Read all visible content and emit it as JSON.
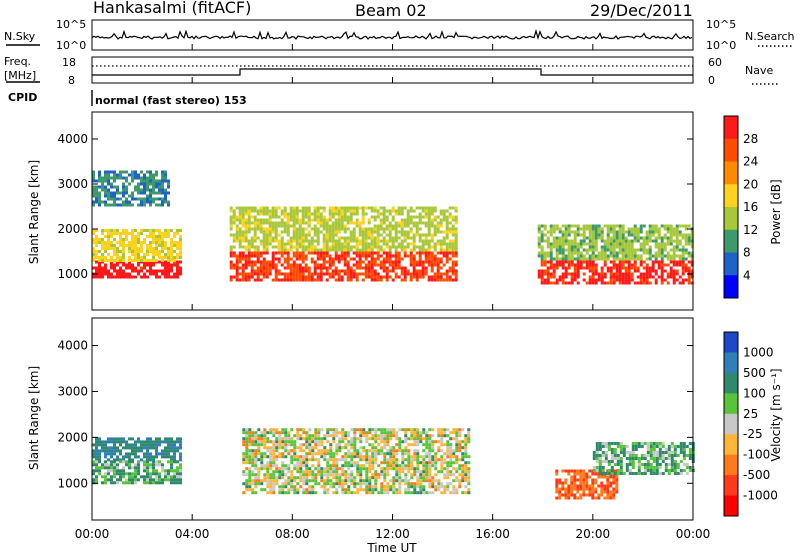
{
  "header": {
    "station": "Hankasalmi (fitACF)",
    "beam": "Beam 02",
    "date": "29/Dec/2011"
  },
  "panels": {
    "nsky": {
      "left_label": "N.Sky",
      "left_ticks": [
        "10^5",
        "10^0"
      ],
      "right_ticks": [
        "10^5",
        "10^0"
      ],
      "right_label": "N.Search"
    },
    "freq": {
      "left_label_1": "Freq.",
      "left_label_2": "[MHz]",
      "left_ticks": [
        "18",
        "8"
      ],
      "right_ticks": [
        "60",
        "0"
      ],
      "right_label": "Nave"
    },
    "cpid": {
      "label": "CPID",
      "text": "normal (fast stereo) 153"
    }
  },
  "power_panel": {
    "ylabel": "Slant Range [km]",
    "yticks": [
      "4000",
      "3000",
      "2000",
      "1000"
    ],
    "colorbar_label": "Power [dB]",
    "colorbar_ticks": [
      "28",
      "24",
      "20",
      "16",
      "12",
      "8",
      "4"
    ],
    "colorbar_colors": [
      "#ff1a1a",
      "#ff4d00",
      "#ff8c00",
      "#ffd21f",
      "#a8c83a",
      "#3e9a6b",
      "#1f63c8",
      "#0000ff"
    ]
  },
  "velocity_panel": {
    "ylabel": "Slant Range [km]",
    "yticks": [
      "4000",
      "3000",
      "2000",
      "1000"
    ],
    "colorbar_label": "Velocity [m s⁻¹]",
    "colorbar_ticks": [
      "1000",
      "500",
      "100",
      "25",
      "-25",
      "-100",
      "-500",
      "-1000"
    ],
    "colorbar_colors": [
      "#1b49c8",
      "#2f7fb9",
      "#2f8a6d",
      "#58c43a",
      "#c8c8c8",
      "#ffb43a",
      "#ff7a1a",
      "#ff3a1a",
      "#ff0000"
    ]
  },
  "xaxis": {
    "ticks": [
      "00:00",
      "04:00",
      "08:00",
      "12:00",
      "16:00",
      "20:00",
      "00:00"
    ],
    "label": "Time UT"
  },
  "chart_data": [
    {
      "type": "heatmap",
      "name": "Power",
      "title": "Hankasalmi (fitACF) Beam 02 29/Dec/2011",
      "xlabel": "Time UT",
      "ylabel": "Slant Range [km]",
      "zlabel": "Power [dB]",
      "xlim": [
        0,
        24
      ],
      "ylim": [
        200,
        4600
      ],
      "zlim": [
        0,
        30
      ],
      "regions": [
        {
          "t": [
            0.0,
            3.5
          ],
          "range": [
            900,
            1300
          ],
          "value": 28
        },
        {
          "t": [
            0.0,
            3.5
          ],
          "range": [
            1300,
            2000
          ],
          "value": 16
        },
        {
          "t": [
            5.5,
            14.5
          ],
          "range": [
            850,
            1500
          ],
          "value": 26
        },
        {
          "t": [
            5.5,
            14.5
          ],
          "range": [
            1500,
            2500
          ],
          "value": 14
        },
        {
          "t": [
            17.8,
            24.0
          ],
          "range": [
            800,
            1300
          ],
          "value": 27
        },
        {
          "t": [
            17.8,
            24.0
          ],
          "range": [
            1300,
            2100
          ],
          "value": 12
        },
        {
          "t": [
            0.0,
            3.0
          ],
          "range": [
            2500,
            3300
          ],
          "value": 8
        }
      ]
    },
    {
      "type": "heatmap",
      "name": "Velocity",
      "xlabel": "Time UT",
      "ylabel": "Slant Range [km]",
      "zlabel": "Velocity [m s-1]",
      "xlim": [
        0,
        24
      ],
      "ylim": [
        200,
        4600
      ],
      "zlim": [
        -1000,
        1000
      ],
      "regions": [
        {
          "t": [
            0.0,
            3.5
          ],
          "range": [
            1500,
            2000
          ],
          "value": 500
        },
        {
          "t": [
            0.0,
            3.5
          ],
          "range": [
            1000,
            1500
          ],
          "value": 100
        },
        {
          "t": [
            6.0,
            15.0
          ],
          "range": [
            800,
            2200
          ],
          "value": 0
        },
        {
          "t": [
            18.5,
            21.0
          ],
          "range": [
            700,
            1300
          ],
          "value": -500
        },
        {
          "t": [
            20.0,
            24.0
          ],
          "range": [
            1200,
            1900
          ],
          "value": 100
        }
      ]
    }
  ]
}
